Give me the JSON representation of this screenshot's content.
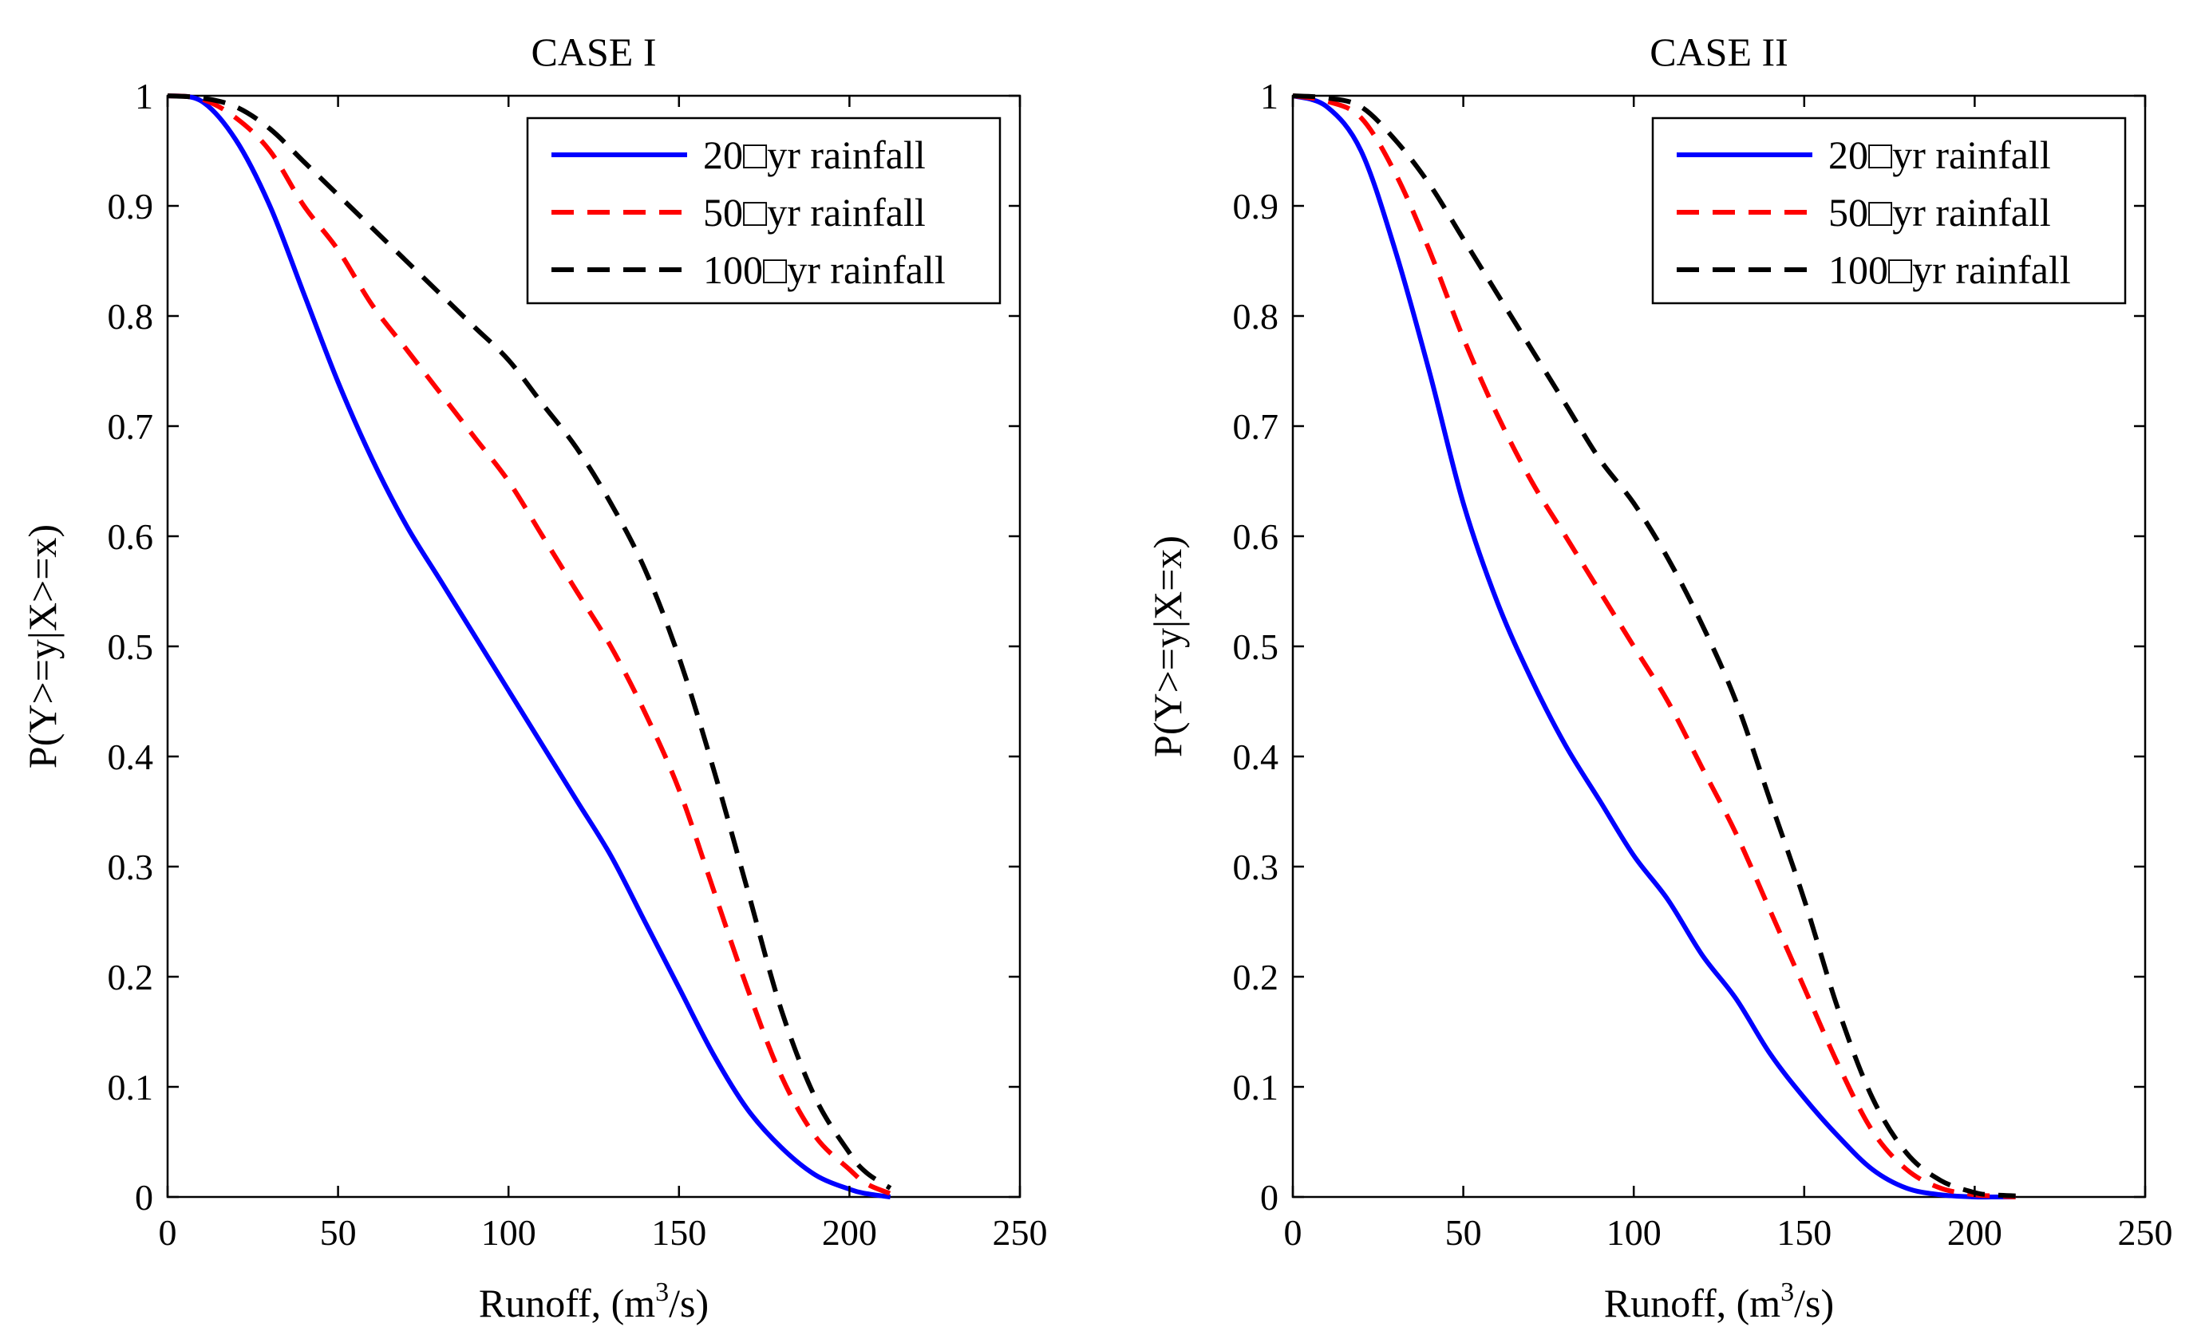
{
  "chart_data": [
    {
      "type": "line",
      "title": "CASE I",
      "xlabel": "Runoff, (m",
      "xlabel_sup": "3",
      "xlabel_end": "/s)",
      "ylabel": "P(Y>=y|X>=x)",
      "xlim": [
        0,
        250
      ],
      "ylim": [
        0,
        1
      ],
      "xticks": [
        "0",
        "50",
        "100",
        "150",
        "200",
        "250"
      ],
      "yticks": [
        "0",
        "0.1",
        "0.2",
        "0.3",
        "0.4",
        "0.5",
        "0.6",
        "0.7",
        "0.8",
        "0.9",
        "1"
      ],
      "legend_position": "top-right",
      "series": [
        {
          "name": "20□yr rainfall",
          "color": "#0000ff",
          "dash": "solid",
          "x": [
            0,
            10,
            20,
            30,
            40,
            50,
            60,
            70,
            80,
            90,
            100,
            110,
            120,
            130,
            140,
            150,
            160,
            170,
            180,
            190,
            200,
            205,
            212
          ],
          "y": [
            1.0,
            0.995,
            0.96,
            0.9,
            0.82,
            0.74,
            0.67,
            0.61,
            0.56,
            0.51,
            0.46,
            0.41,
            0.36,
            0.31,
            0.25,
            0.19,
            0.13,
            0.08,
            0.045,
            0.02,
            0.007,
            0.003,
            0.0
          ]
        },
        {
          "name": "50□yr rainfall",
          "color": "#ff0000",
          "dash": "dashed",
          "x": [
            0,
            10,
            20,
            30,
            40,
            50,
            60,
            70,
            80,
            90,
            100,
            110,
            120,
            130,
            140,
            150,
            160,
            170,
            180,
            190,
            200,
            205,
            212
          ],
          "y": [
            1.0,
            0.997,
            0.98,
            0.95,
            0.9,
            0.86,
            0.81,
            0.77,
            0.73,
            0.69,
            0.65,
            0.6,
            0.55,
            0.5,
            0.44,
            0.37,
            0.28,
            0.19,
            0.11,
            0.055,
            0.025,
            0.012,
            0.003
          ]
        },
        {
          "name": "100□yr rainfall",
          "color": "#000000",
          "dash": "dashed",
          "x": [
            0,
            10,
            20,
            30,
            40,
            50,
            60,
            70,
            80,
            90,
            100,
            110,
            120,
            130,
            140,
            150,
            160,
            170,
            180,
            190,
            200,
            205,
            212
          ],
          "y": [
            1.0,
            0.998,
            0.99,
            0.97,
            0.94,
            0.91,
            0.88,
            0.85,
            0.82,
            0.79,
            0.76,
            0.72,
            0.68,
            0.63,
            0.57,
            0.49,
            0.39,
            0.28,
            0.17,
            0.09,
            0.04,
            0.022,
            0.008
          ]
        }
      ]
    },
    {
      "type": "line",
      "title": "CASE II",
      "xlabel": "Runoff, (m",
      "xlabel_sup": "3",
      "xlabel_end": "/s)",
      "ylabel": "P(Y>=y|X=x)",
      "xlim": [
        0,
        250
      ],
      "ylim": [
        0,
        1
      ],
      "xticks": [
        "0",
        "50",
        "100",
        "150",
        "200",
        "250"
      ],
      "yticks": [
        "0",
        "0.1",
        "0.2",
        "0.3",
        "0.4",
        "0.5",
        "0.6",
        "0.7",
        "0.8",
        "0.9",
        "1"
      ],
      "legend_position": "top-right",
      "series": [
        {
          "name": "20□yr rainfall",
          "color": "#0000ff",
          "dash": "solid",
          "x": [
            0,
            10,
            20,
            30,
            40,
            50,
            60,
            70,
            80,
            90,
            100,
            110,
            120,
            130,
            140,
            150,
            160,
            170,
            180,
            190,
            200,
            205,
            212
          ],
          "y": [
            1.0,
            0.99,
            0.95,
            0.86,
            0.75,
            0.63,
            0.54,
            0.47,
            0.41,
            0.36,
            0.31,
            0.27,
            0.22,
            0.18,
            0.13,
            0.09,
            0.055,
            0.025,
            0.008,
            0.002,
            0.0,
            0.0,
            0.0
          ]
        },
        {
          "name": "50□yr rainfall",
          "color": "#ff0000",
          "dash": "dashed",
          "x": [
            0,
            10,
            20,
            30,
            40,
            50,
            60,
            70,
            80,
            90,
            100,
            110,
            120,
            130,
            140,
            150,
            160,
            170,
            180,
            190,
            200,
            205,
            212
          ],
          "y": [
            1.0,
            0.995,
            0.98,
            0.93,
            0.86,
            0.78,
            0.71,
            0.65,
            0.6,
            0.55,
            0.5,
            0.45,
            0.39,
            0.33,
            0.26,
            0.19,
            0.12,
            0.06,
            0.025,
            0.008,
            0.002,
            0.001,
            0.0
          ]
        },
        {
          "name": "100□yr rainfall",
          "color": "#000000",
          "dash": "dashed",
          "x": [
            0,
            10,
            20,
            30,
            40,
            50,
            60,
            70,
            80,
            90,
            100,
            110,
            120,
            130,
            140,
            150,
            160,
            170,
            180,
            190,
            200,
            205,
            212
          ],
          "y": [
            1.0,
            0.998,
            0.99,
            0.96,
            0.92,
            0.87,
            0.82,
            0.77,
            0.72,
            0.67,
            0.63,
            0.58,
            0.52,
            0.45,
            0.36,
            0.27,
            0.17,
            0.09,
            0.04,
            0.015,
            0.004,
            0.002,
            0.001
          ]
        }
      ]
    }
  ]
}
